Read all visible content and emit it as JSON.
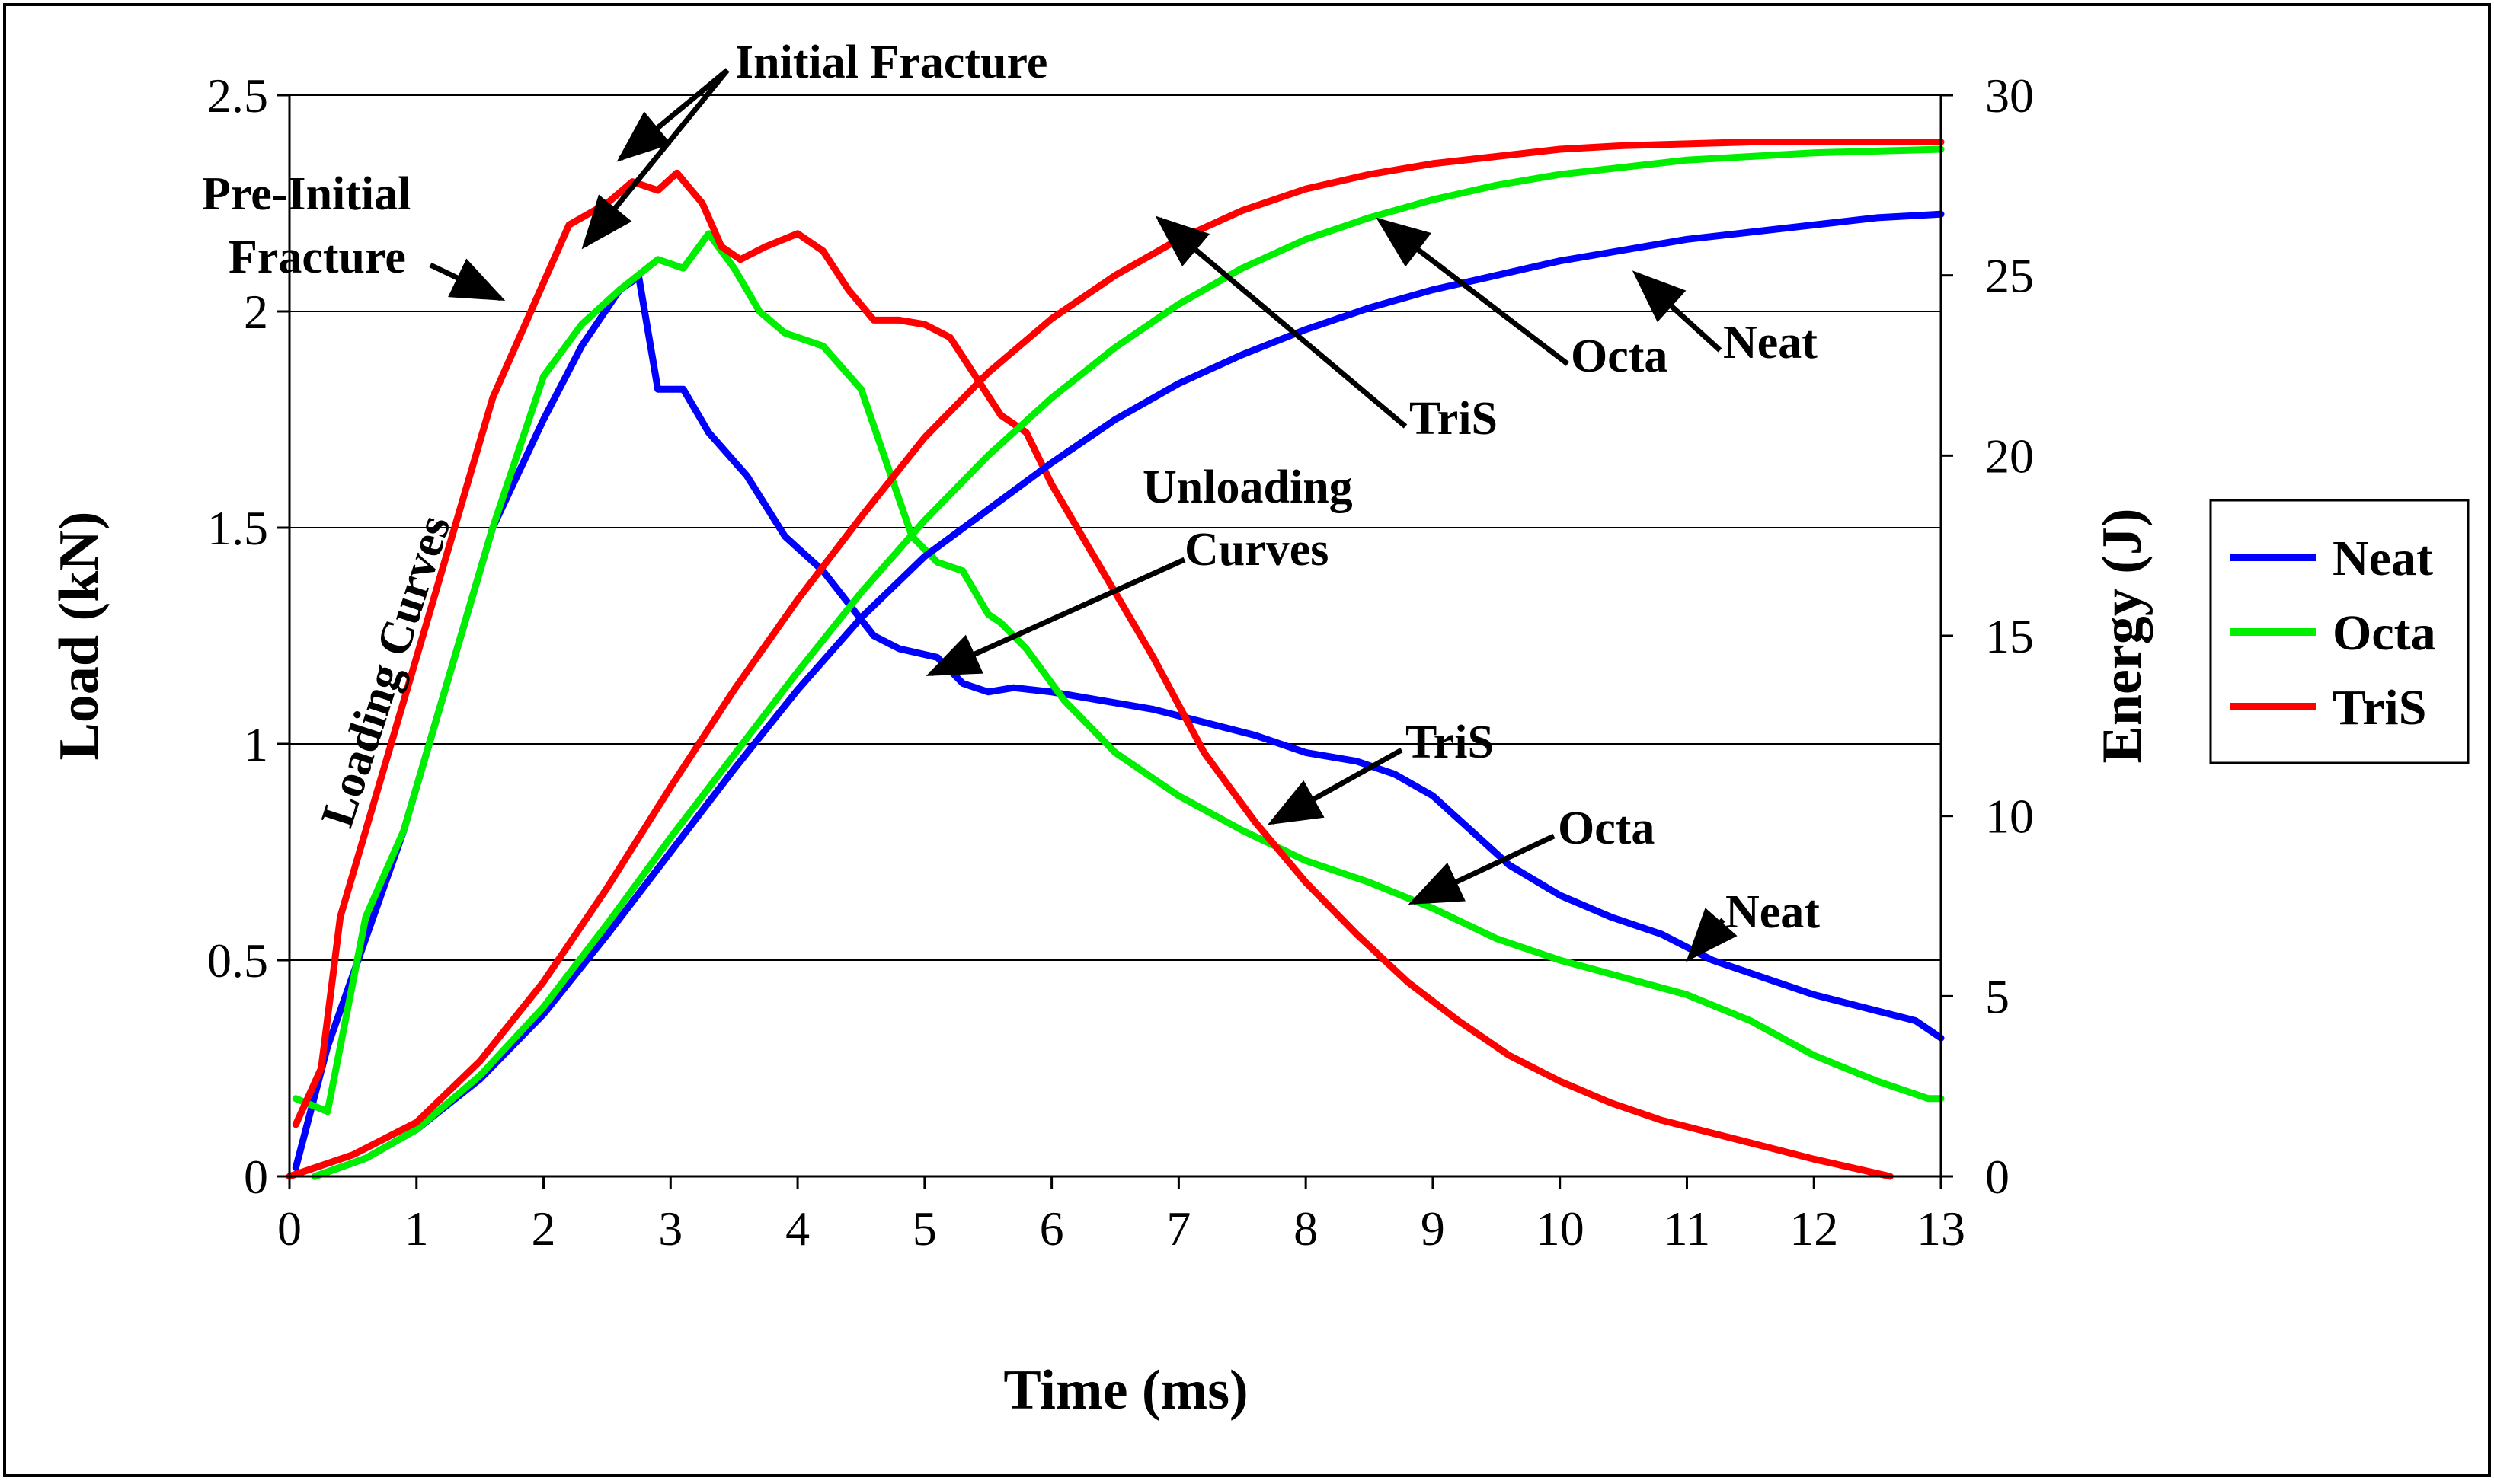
{
  "chart_data": {
    "type": "line",
    "xlabel": "Time (ms)",
    "ylabel": "Load (kN)",
    "y2label": "Energy (J)",
    "xlim": [
      0,
      13
    ],
    "ylim": [
      0,
      2.5
    ],
    "y2lim": [
      0,
      30
    ],
    "x_ticks": [
      "0",
      "1",
      "2",
      "3",
      "4",
      "5",
      "6",
      "7",
      "8",
      "9",
      "10",
      "11",
      "12",
      "13"
    ],
    "y_ticks": [
      "0",
      "0.5",
      "1",
      "1.5",
      "2",
      "2.5"
    ],
    "y2_ticks": [
      "0",
      "5",
      "10",
      "15",
      "20",
      "25",
      "30"
    ],
    "grid": "horizontal",
    "legend": {
      "placement": "right",
      "entries": [
        {
          "name": "Neat",
          "color": "#0000ff"
        },
        {
          "name": "Octa",
          "color": "#00ee00"
        },
        {
          "name": "TriS",
          "color": "#ff0000"
        }
      ]
    },
    "series": [
      {
        "name": "Neat",
        "kind": "load",
        "axis": "left",
        "color": "#0000ff",
        "x": [
          0.05,
          0.3,
          0.6,
          0.9,
          1.2,
          1.6,
          2.0,
          2.3,
          2.6,
          2.75,
          2.9,
          3.1,
          3.3,
          3.6,
          3.9,
          4.2,
          4.6,
          4.8,
          5.1,
          5.3,
          5.5,
          5.7,
          6.0,
          6.4,
          6.8,
          7.2,
          7.6,
          8.0,
          8.4,
          8.7,
          9.0,
          9.3,
          9.6,
          10.0,
          10.4,
          10.8,
          11.2,
          11.6,
          12.0,
          12.4,
          12.8,
          13.0
        ],
        "y": [
          0.02,
          0.3,
          0.55,
          0.8,
          1.1,
          1.5,
          1.75,
          1.92,
          2.05,
          2.08,
          1.82,
          1.82,
          1.72,
          1.62,
          1.48,
          1.4,
          1.25,
          1.22,
          1.2,
          1.14,
          1.12,
          1.13,
          1.12,
          1.1,
          1.08,
          1.05,
          1.02,
          0.98,
          0.96,
          0.93,
          0.88,
          0.8,
          0.72,
          0.65,
          0.6,
          0.56,
          0.5,
          0.46,
          0.42,
          0.39,
          0.36,
          0.32
        ]
      },
      {
        "name": "Octa",
        "kind": "load",
        "axis": "left",
        "color": "#00ee00",
        "x": [
          0.05,
          0.3,
          0.6,
          0.9,
          1.2,
          1.6,
          2.0,
          2.3,
          2.6,
          2.9,
          3.1,
          3.3,
          3.5,
          3.7,
          3.9,
          4.2,
          4.5,
          4.7,
          4.9,
          5.1,
          5.3,
          5.5,
          5.6,
          5.8,
          6.1,
          6.5,
          7.0,
          7.5,
          8.0,
          8.5,
          9.0,
          9.5,
          10.0,
          10.5,
          11.0,
          11.5,
          12.0,
          12.5,
          12.9,
          13.0
        ],
        "y": [
          0.18,
          0.15,
          0.6,
          0.8,
          1.1,
          1.5,
          1.85,
          1.97,
          2.05,
          2.12,
          2.1,
          2.18,
          2.1,
          2.0,
          1.95,
          1.92,
          1.82,
          1.65,
          1.48,
          1.42,
          1.4,
          1.3,
          1.28,
          1.22,
          1.1,
          0.98,
          0.88,
          0.8,
          0.73,
          0.68,
          0.62,
          0.55,
          0.5,
          0.46,
          0.42,
          0.36,
          0.28,
          0.22,
          0.18,
          0.18
        ]
      },
      {
        "name": "TriS",
        "kind": "load",
        "axis": "left",
        "color": "#ff0000",
        "x": [
          0.05,
          0.25,
          0.4,
          0.6,
          0.9,
          1.2,
          1.6,
          1.9,
          2.2,
          2.5,
          2.7,
          2.9,
          3.05,
          3.25,
          3.4,
          3.55,
          3.75,
          4.0,
          4.2,
          4.4,
          4.6,
          4.8,
          5.0,
          5.2,
          5.4,
          5.6,
          5.8,
          6.0,
          6.4,
          6.8,
          7.2,
          7.6,
          8.0,
          8.4,
          8.8,
          9.2,
          9.6,
          10.0,
          10.4,
          10.8,
          11.2,
          11.6,
          12.0,
          12.3,
          12.6
        ],
        "y": [
          0.12,
          0.25,
          0.6,
          0.8,
          1.1,
          1.4,
          1.8,
          2.0,
          2.2,
          2.25,
          2.3,
          2.28,
          2.32,
          2.25,
          2.15,
          2.12,
          2.15,
          2.18,
          2.14,
          2.05,
          1.98,
          1.98,
          1.97,
          1.94,
          1.85,
          1.76,
          1.72,
          1.6,
          1.4,
          1.2,
          0.98,
          0.82,
          0.68,
          0.56,
          0.45,
          0.36,
          0.28,
          0.22,
          0.17,
          0.13,
          0.1,
          0.07,
          0.04,
          0.02,
          0.0
        ]
      },
      {
        "name": "Neat",
        "kind": "energy",
        "axis": "right",
        "color": "#0000ff",
        "x": [
          0.2,
          0.6,
          1.0,
          1.5,
          2.0,
          2.5,
          3.0,
          3.5,
          4.0,
          4.5,
          5.0,
          5.5,
          6.0,
          6.5,
          7.0,
          7.5,
          8.0,
          8.5,
          9.0,
          9.5,
          10.0,
          10.5,
          11.0,
          11.5,
          12.0,
          12.5,
          13.0
        ],
        "y": [
          0,
          0.5,
          1.3,
          2.7,
          4.5,
          6.7,
          9.0,
          11.3,
          13.5,
          15.5,
          17.2,
          18.5,
          19.8,
          21.0,
          22.0,
          22.8,
          23.5,
          24.1,
          24.6,
          25.0,
          25.4,
          25.7,
          26.0,
          26.2,
          26.4,
          26.6,
          26.7
        ]
      },
      {
        "name": "Octa",
        "kind": "energy",
        "axis": "right",
        "color": "#00ee00",
        "x": [
          0.2,
          0.6,
          1.0,
          1.5,
          2.0,
          2.5,
          3.0,
          3.5,
          4.0,
          4.5,
          5.0,
          5.5,
          6.0,
          6.5,
          7.0,
          7.5,
          8.0,
          8.5,
          9.0,
          9.5,
          10.0,
          10.5,
          11.0,
          11.5,
          12.0,
          12.5,
          13.0
        ],
        "y": [
          0,
          0.5,
          1.3,
          2.8,
          4.7,
          7.0,
          9.4,
          11.7,
          14.0,
          16.2,
          18.2,
          20.0,
          21.6,
          23.0,
          24.2,
          25.2,
          26.0,
          26.6,
          27.1,
          27.5,
          27.8,
          28.0,
          28.2,
          28.3,
          28.4,
          28.45,
          28.5
        ]
      },
      {
        "name": "TriS",
        "kind": "energy",
        "axis": "right",
        "color": "#ff0000",
        "x": [
          0.0,
          0.5,
          1.0,
          1.5,
          2.0,
          2.5,
          3.0,
          3.5,
          4.0,
          4.5,
          5.0,
          5.5,
          6.0,
          6.5,
          7.0,
          7.5,
          8.0,
          8.5,
          9.0,
          9.5,
          10.0,
          10.5,
          11.0,
          11.5,
          12.0,
          12.5,
          13.0
        ],
        "y": [
          0,
          0.6,
          1.5,
          3.2,
          5.4,
          8.0,
          10.8,
          13.5,
          16.0,
          18.3,
          20.5,
          22.3,
          23.8,
          25.0,
          26.0,
          26.8,
          27.4,
          27.8,
          28.1,
          28.3,
          28.5,
          28.6,
          28.65,
          28.7,
          28.7,
          28.7,
          28.7
        ]
      }
    ],
    "annotations": {
      "initial_fracture": "Initial Fracture",
      "pre_initial_line1": "Pre-Initial",
      "pre_initial_line2": "Fracture",
      "loading_curves": "Loading Curves",
      "unloading_line1": "Unloading",
      "unloading_line2": "Curves",
      "energy_tris": "TriS",
      "energy_octa": "Octa",
      "energy_neat": "Neat",
      "unload_tris": "TriS",
      "unload_octa": "Octa",
      "unload_neat": "Neat"
    }
  }
}
